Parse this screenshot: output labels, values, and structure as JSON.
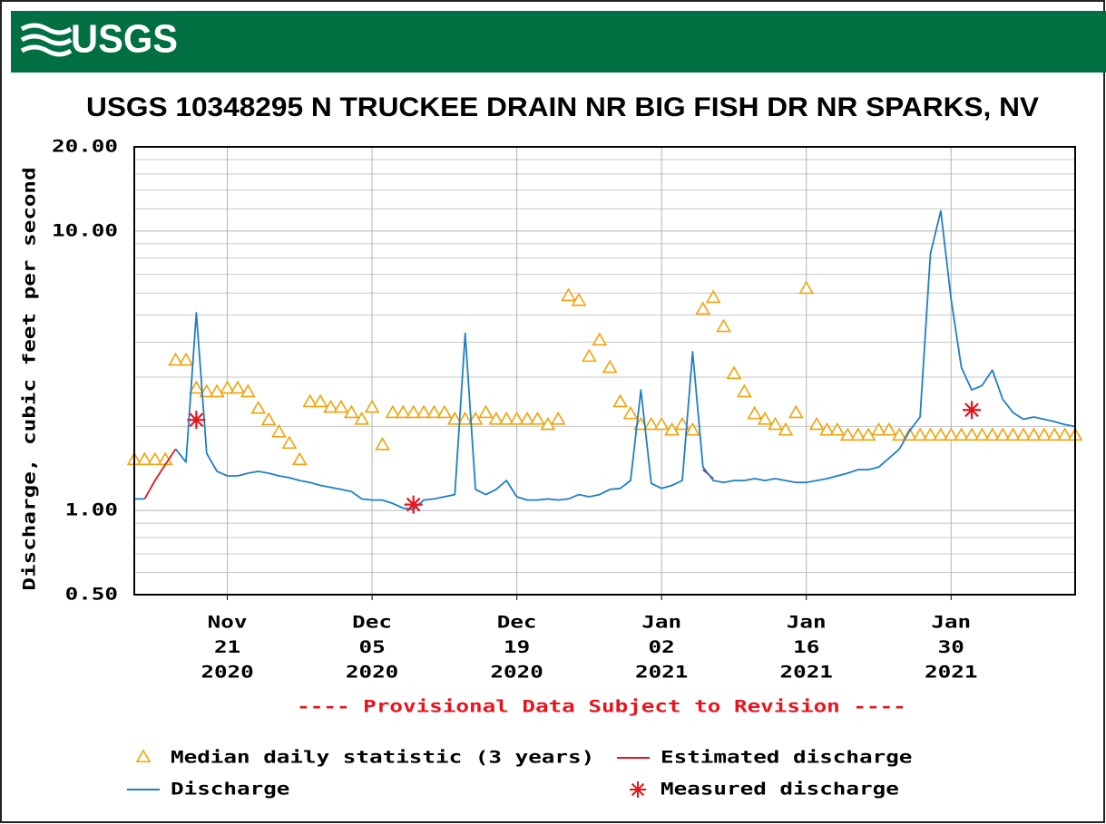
{
  "header": {
    "logo": "USGS"
  },
  "chart_data": {
    "type": "line",
    "title": "USGS 10348295 N TRUCKEE DRAIN NR BIG FISH DR NR SPARKS, NV",
    "ylabel": "Discharge, cubic feet per second",
    "annotation": "---- Provisional Data Subject to Revision ----",
    "yscale": "log",
    "grid": true,
    "legend_position": "bottom",
    "xlim": [
      "2020-11-12",
      "2021-02-11"
    ],
    "xticks": [
      {
        "value": "2020-11-21",
        "label": [
          "Nov",
          "21",
          "2020"
        ]
      },
      {
        "value": "2020-12-05",
        "label": [
          "Dec",
          "05",
          "2020"
        ]
      },
      {
        "value": "2020-12-19",
        "label": [
          "Dec",
          "19",
          "2020"
        ]
      },
      {
        "value": "2021-01-02",
        "label": [
          "Jan",
          "02",
          "2021"
        ]
      },
      {
        "value": "2021-01-16",
        "label": [
          "Jan",
          "16",
          "2021"
        ]
      },
      {
        "value": "2021-01-30",
        "label": [
          "Jan",
          "30",
          "2021"
        ]
      }
    ],
    "ylim": [
      0.5,
      20
    ],
    "yticks": [
      {
        "value": 0.5,
        "label": "0.50"
      },
      {
        "value": 1,
        "label": "1.00"
      },
      {
        "value": 10,
        "label": "10.00"
      },
      {
        "value": 20,
        "label": "20.00"
      }
    ],
    "yminorticks": [
      0.6,
      0.7,
      0.8,
      0.9,
      2,
      3,
      4,
      5,
      6,
      7,
      8,
      9,
      12,
      14,
      16,
      18
    ],
    "x": [
      "2020-11-12",
      "2020-11-13",
      "2020-11-14",
      "2020-11-15",
      "2020-11-16",
      "2020-11-17",
      "2020-11-18",
      "2020-11-19",
      "2020-11-20",
      "2020-11-21",
      "2020-11-22",
      "2020-11-23",
      "2020-11-24",
      "2020-11-25",
      "2020-11-26",
      "2020-11-27",
      "2020-11-28",
      "2020-11-29",
      "2020-11-30",
      "2020-12-01",
      "2020-12-02",
      "2020-12-03",
      "2020-12-04",
      "2020-12-05",
      "2020-12-06",
      "2020-12-07",
      "2020-12-08",
      "2020-12-09",
      "2020-12-10",
      "2020-12-11",
      "2020-12-12",
      "2020-12-13",
      "2020-12-14",
      "2020-12-15",
      "2020-12-16",
      "2020-12-17",
      "2020-12-18",
      "2020-12-19",
      "2020-12-20",
      "2020-12-21",
      "2020-12-22",
      "2020-12-23",
      "2020-12-24",
      "2020-12-25",
      "2020-12-26",
      "2020-12-27",
      "2020-12-28",
      "2020-12-29",
      "2020-12-30",
      "2020-12-31",
      "2021-01-01",
      "2021-01-02",
      "2021-01-03",
      "2021-01-04",
      "2021-01-05",
      "2021-01-06",
      "2021-01-07",
      "2021-01-08",
      "2021-01-09",
      "2021-01-10",
      "2021-01-11",
      "2021-01-12",
      "2021-01-13",
      "2021-01-14",
      "2021-01-15",
      "2021-01-16",
      "2021-01-17",
      "2021-01-18",
      "2021-01-19",
      "2021-01-20",
      "2021-01-21",
      "2021-01-22",
      "2021-01-23",
      "2021-01-24",
      "2021-01-25",
      "2021-01-26",
      "2021-01-27",
      "2021-01-28",
      "2021-01-29",
      "2021-01-30",
      "2021-01-31",
      "2021-02-01",
      "2021-02-02",
      "2021-02-03",
      "2021-02-04",
      "2021-02-05",
      "2021-02-06",
      "2021-02-07",
      "2021-02-08",
      "2021-02-09",
      "2021-02-10",
      "2021-02-11"
    ],
    "series": [
      {
        "name": "Median daily statistic (3 years)",
        "marker": "triangle",
        "color": "#f0a30a",
        "values": [
          1.52,
          1.52,
          1.52,
          1.52,
          3.45,
          3.45,
          2.74,
          2.66,
          2.66,
          2.74,
          2.74,
          2.66,
          2.32,
          2.11,
          1.91,
          1.74,
          1.52,
          2.45,
          2.45,
          2.34,
          2.34,
          2.24,
          2.12,
          2.34,
          1.72,
          2.24,
          2.24,
          2.24,
          2.24,
          2.24,
          2.24,
          2.12,
          2.12,
          2.12,
          2.24,
          2.12,
          2.12,
          2.12,
          2.12,
          2.12,
          2.03,
          2.12,
          5.87,
          5.64,
          3.56,
          4.07,
          3.25,
          2.45,
          2.22,
          2.03,
          2.03,
          2.03,
          1.94,
          2.03,
          1.94,
          5.25,
          5.78,
          4.55,
          3.09,
          2.66,
          2.22,
          2.12,
          2.03,
          1.94,
          2.24,
          6.23,
          2.03,
          1.94,
          1.94,
          1.86,
          1.86,
          1.86,
          1.94,
          1.94,
          1.86,
          1.86,
          1.86,
          1.86,
          1.86,
          1.86,
          1.86,
          1.86,
          1.86,
          1.86,
          1.86,
          1.86,
          1.86,
          1.86,
          1.86,
          1.86,
          1.86,
          1.86
        ]
      },
      {
        "name": "Estimated discharge",
        "marker": "line",
        "color": "#e8141c",
        "x": [
          "2020-11-13",
          "2020-11-14",
          "2020-11-15",
          "2020-11-16",
          "2020-11-17",
          "2021-01-06",
          "2021-01-07"
        ],
        "values": [
          1.1,
          1.28,
          1.46,
          1.66,
          null,
          1.4,
          1.3
        ]
      },
      {
        "name": "Discharge",
        "marker": "line",
        "color": "#1f7fc4",
        "values": [
          1.1,
          1.1,
          null,
          null,
          1.66,
          1.49,
          5.1,
          1.6,
          1.38,
          1.33,
          1.33,
          1.36,
          1.38,
          1.36,
          1.33,
          1.31,
          1.28,
          1.26,
          1.23,
          1.21,
          1.19,
          1.17,
          1.1,
          1.09,
          1.09,
          1.06,
          1.02,
          1.01,
          1.09,
          1.1,
          1.12,
          1.14,
          4.3,
          1.19,
          1.14,
          1.19,
          1.28,
          1.12,
          1.09,
          1.09,
          1.1,
          1.09,
          1.1,
          1.14,
          1.12,
          1.14,
          1.19,
          1.2,
          1.28,
          2.7,
          1.25,
          1.2,
          1.23,
          1.28,
          3.7,
          1.43,
          1.28,
          1.26,
          1.28,
          1.28,
          1.3,
          1.28,
          1.3,
          1.28,
          1.26,
          1.26,
          1.28,
          1.3,
          1.33,
          1.36,
          1.4,
          1.4,
          1.43,
          1.54,
          1.66,
          1.93,
          2.16,
          8.3,
          11.8,
          5.7,
          3.25,
          2.7,
          2.8,
          3.18,
          2.5,
          2.24,
          2.12,
          2.16,
          2.12,
          2.08,
          2.03,
          2.0
        ]
      },
      {
        "name": "Measured discharge",
        "marker": "star",
        "color": "#e8141c",
        "x": [
          "2020-11-18",
          "2020-12-09",
          "2021-02-01"
        ],
        "values": [
          2.11,
          1.05,
          2.29
        ]
      }
    ]
  }
}
